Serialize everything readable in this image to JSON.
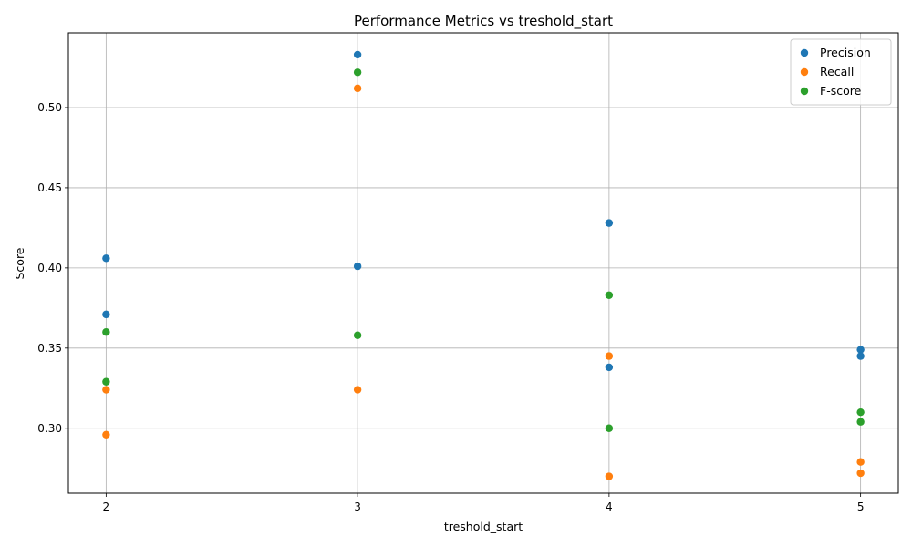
{
  "chart_data": {
    "type": "scatter",
    "title": "Performance Metrics vs treshold_start",
    "xlabel": "treshold_start",
    "ylabel": "Score",
    "xlim": [
      1.85,
      5.15
    ],
    "ylim": [
      0.2595,
      0.5466
    ],
    "xticks": [
      2,
      3,
      4,
      5
    ],
    "xtick_labels": [
      "2",
      "3",
      "4",
      "5"
    ],
    "yticks": [
      0.3,
      0.35,
      0.4,
      0.45,
      0.5
    ],
    "ytick_labels": [
      "0.30",
      "0.35",
      "0.40",
      "0.45",
      "0.50"
    ],
    "grid": true,
    "legend_position": "top-right",
    "series": [
      {
        "name": "Precision",
        "color": "#1f77b4",
        "points": [
          [
            2,
            0.406
          ],
          [
            2,
            0.371
          ],
          [
            3,
            0.533
          ],
          [
            3,
            0.401
          ],
          [
            4,
            0.428
          ],
          [
            4,
            0.338
          ],
          [
            5,
            0.349
          ],
          [
            5,
            0.345
          ]
        ]
      },
      {
        "name": "Recall",
        "color": "#ff7f0e",
        "points": [
          [
            2,
            0.324
          ],
          [
            2,
            0.296
          ],
          [
            3,
            0.512
          ],
          [
            3,
            0.324
          ],
          [
            4,
            0.345
          ],
          [
            4,
            0.27
          ],
          [
            5,
            0.279
          ],
          [
            5,
            0.272
          ]
        ]
      },
      {
        "name": "F-score",
        "color": "#2ca02c",
        "points": [
          [
            2,
            0.36
          ],
          [
            2,
            0.329
          ],
          [
            3,
            0.522
          ],
          [
            3,
            0.358
          ],
          [
            4,
            0.383
          ],
          [
            4,
            0.3
          ],
          [
            5,
            0.31
          ],
          [
            5,
            0.304
          ]
        ]
      }
    ]
  }
}
